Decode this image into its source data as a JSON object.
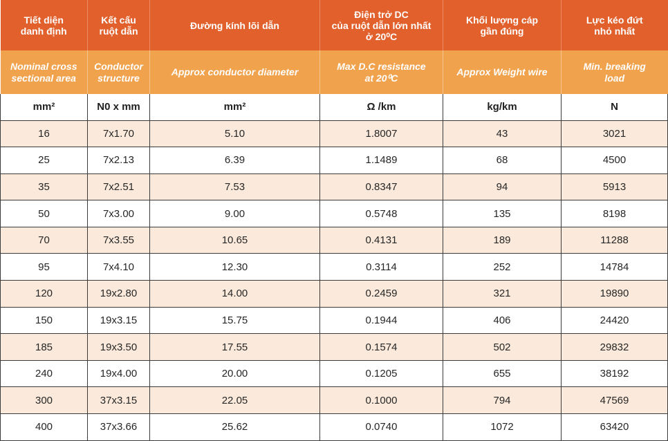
{
  "header_vn": [
    [
      "Tiết diện",
      "danh định"
    ],
    [
      "Kết cấu",
      "ruột dẫn"
    ],
    [
      "Đường kính lõi dẫn"
    ],
    [
      "Điện trở DC",
      "của ruột dẫn lớn nhất",
      "ở 20⁰C"
    ],
    [
      "Khối lượng cáp",
      "gần đúng"
    ],
    [
      "Lực kéo đứt",
      "nhỏ nhất"
    ]
  ],
  "header_en": [
    [
      "Nominal cross",
      "sectional area"
    ],
    [
      "Conductor",
      "structure"
    ],
    [
      "Approx conductor diameter"
    ],
    [
      "Max D.C resistance",
      "at 20⁰C"
    ],
    [
      "Approx Weight wire"
    ],
    [
      "Min. breaking",
      "load"
    ]
  ],
  "units": [
    "mm²",
    "N0 x mm",
    "mm²",
    "Ω /km",
    "kg/km",
    "N"
  ],
  "rows": [
    [
      "16",
      "7x1.70",
      "5.10",
      "1.8007",
      "43",
      "3021"
    ],
    [
      "25",
      "7x2.13",
      "6.39",
      "1.1489",
      "68",
      "4500"
    ],
    [
      "35",
      "7x2.51",
      "7.53",
      "0.8347",
      "94",
      "5913"
    ],
    [
      "50",
      "7x3.00",
      "9.00",
      "0.5748",
      "135",
      "8198"
    ],
    [
      "70",
      "7x3.55",
      "10.65",
      "0.4131",
      "189",
      "11288"
    ],
    [
      "95",
      "7x4.10",
      "12.30",
      "0.3114",
      "252",
      "14784"
    ],
    [
      "120",
      "19x2.80",
      "14.00",
      "0.2459",
      "321",
      "19890"
    ],
    [
      "150",
      "19x3.15",
      "15.75",
      "0.1944",
      "406",
      "24420"
    ],
    [
      "185",
      "19x3.50",
      "17.55",
      "0.1574",
      "502",
      "29832"
    ],
    [
      "240",
      "19x4.00",
      "20.00",
      "0.1205",
      "655",
      "38192"
    ],
    [
      "300",
      "37x3.15",
      "22.05",
      "0.1000",
      "794",
      "47569"
    ],
    [
      "400",
      "37x3.66",
      "25.62",
      "0.0740",
      "1072",
      "63420"
    ]
  ]
}
